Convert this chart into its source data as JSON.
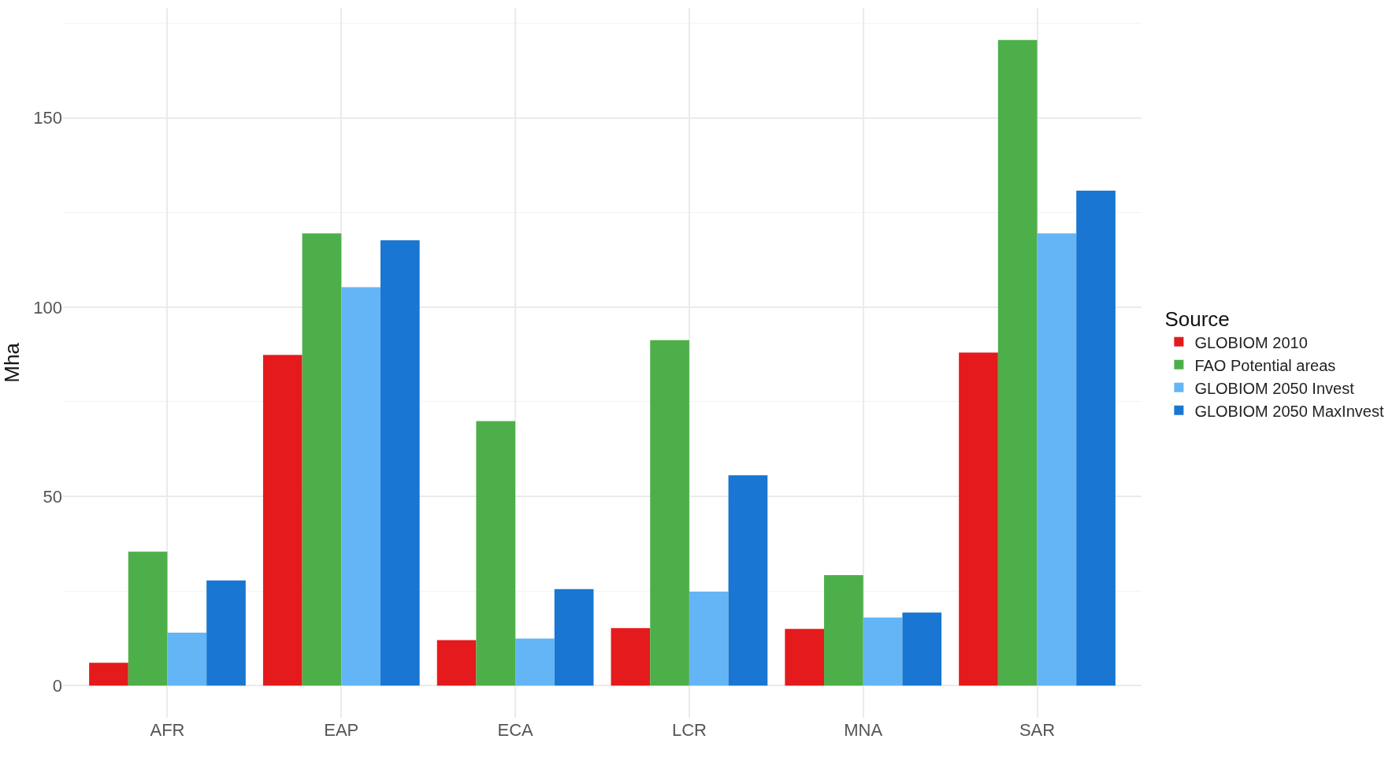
{
  "chart_data": {
    "type": "bar",
    "ylabel": "Mha",
    "legend_title": "Source",
    "categories": [
      "AFR",
      "EAP",
      "ECA",
      "LCR",
      "MNA",
      "SAR"
    ],
    "series": [
      {
        "name": "GLOBIOM 2010",
        "color": "#e41a1c",
        "values": [
          6.0,
          87.4,
          12.0,
          15.2,
          15.0,
          88.0
        ]
      },
      {
        "name": "FAO Potential areas",
        "color": "#4daf4a",
        "values": [
          35.4,
          119.5,
          69.9,
          91.3,
          29.2,
          170.6
        ]
      },
      {
        "name": "GLOBIOM 2050 Invest",
        "color": "#64b5f6",
        "values": [
          14.0,
          105.3,
          12.4,
          24.8,
          18.0,
          119.5
        ]
      },
      {
        "name": "GLOBIOM 2050 MaxInvest",
        "color": "#1976d2",
        "values": [
          27.8,
          117.7,
          25.5,
          55.6,
          19.3,
          130.8
        ]
      }
    ],
    "ylim": [
      -8.5,
      179.1
    ],
    "yticks": [
      0,
      50,
      100,
      150
    ],
    "grid": true,
    "legend": "right"
  }
}
